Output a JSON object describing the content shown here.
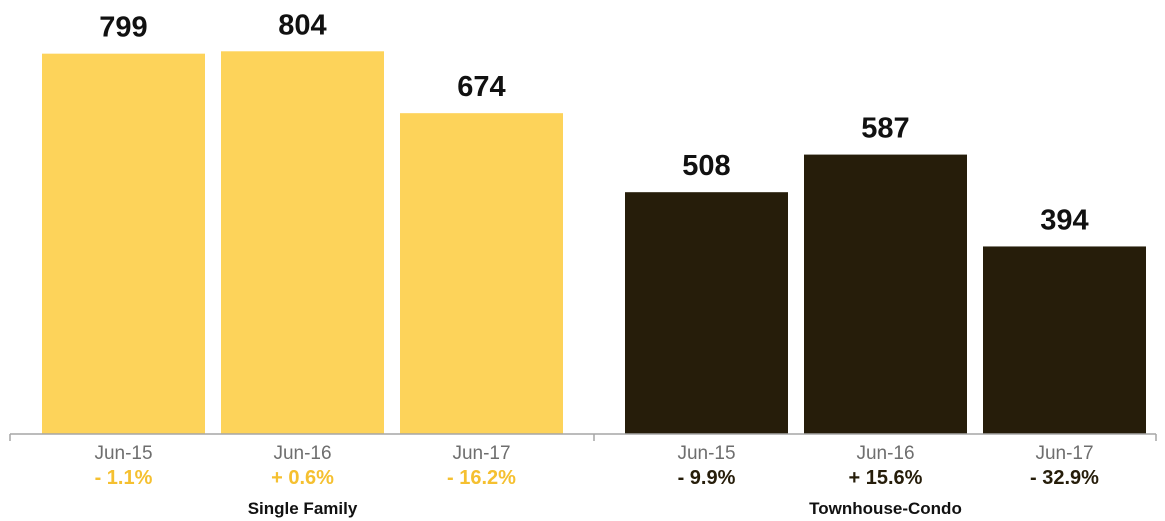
{
  "chart_data": {
    "type": "bar",
    "ylim": [
      0,
      820
    ],
    "groups": [
      {
        "name": "Single Family",
        "color": "#FDD35A",
        "change_color": "#F5C030",
        "categories": [
          "Jun-15",
          "Jun-16",
          "Jun-17"
        ],
        "values": [
          799,
          804,
          674
        ],
        "changes": [
          "- 1.1%",
          "+ 0.6%",
          "- 16.2%"
        ]
      },
      {
        "name": "Townhouse-Condo",
        "color": "#261D0A",
        "change_color": "#261D0A",
        "categories": [
          "Jun-15",
          "Jun-16",
          "Jun-17"
        ],
        "values": [
          508,
          587,
          394
        ],
        "changes": [
          "- 9.9%",
          "+ 15.6%",
          "- 32.9%"
        ]
      }
    ]
  }
}
